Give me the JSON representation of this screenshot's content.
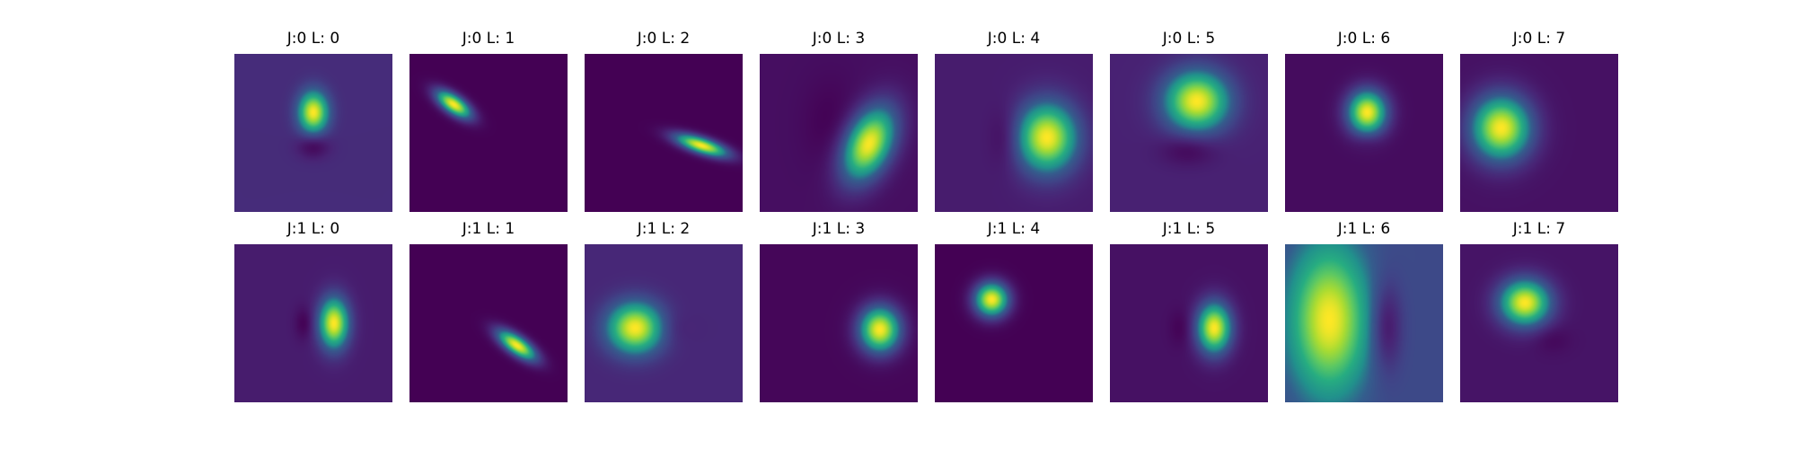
{
  "chart_data": {
    "type": "heatmap",
    "colormap": "viridis",
    "rows": 2,
    "cols": 8,
    "panels": [
      {
        "title": "J:0 L: 0",
        "background": 0.16,
        "blobs": [
          {
            "cx": 0.5,
            "cy": 0.37,
            "sx": 0.065,
            "sy": 0.09,
            "rot": 0,
            "amp": 0.84
          },
          {
            "cx": 0.5,
            "cy": 0.58,
            "sx": 0.07,
            "sy": 0.055,
            "rot": 0,
            "amp": -0.16
          }
        ]
      },
      {
        "title": "J:0 L: 1",
        "background": 0.0,
        "blobs": [
          {
            "cx": 0.28,
            "cy": 0.32,
            "sx": 0.09,
            "sy": 0.04,
            "rot": 35,
            "amp": 1.0
          }
        ]
      },
      {
        "title": "J:0 L: 2",
        "background": 0.0,
        "blobs": [
          {
            "cx": 0.74,
            "cy": 0.58,
            "sx": 0.12,
            "sy": 0.035,
            "rot": 18,
            "amp": 1.0
          }
        ]
      },
      {
        "title": "J:0 L: 3",
        "background": 0.05,
        "blobs": [
          {
            "cx": 0.69,
            "cy": 0.57,
            "sx": 0.1,
            "sy": 0.17,
            "rot": 25,
            "amp": 0.95
          },
          {
            "cx": 0.45,
            "cy": 0.45,
            "sx": 0.12,
            "sy": 0.2,
            "rot": 0,
            "amp": -0.05
          }
        ]
      },
      {
        "title": "J:0 L: 4",
        "background": 0.1,
        "blobs": [
          {
            "cx": 0.71,
            "cy": 0.53,
            "sx": 0.13,
            "sy": 0.15,
            "rot": 0,
            "amp": 0.9
          },
          {
            "cx": 0.45,
            "cy": 0.53,
            "sx": 0.07,
            "sy": 0.13,
            "rot": 0,
            "amp": -0.1
          }
        ]
      },
      {
        "title": "J:0 L: 5",
        "background": 0.12,
        "blobs": [
          {
            "cx": 0.55,
            "cy": 0.3,
            "sx": 0.14,
            "sy": 0.13,
            "rot": 0,
            "amp": 0.88
          },
          {
            "cx": 0.5,
            "cy": 0.6,
            "sx": 0.12,
            "sy": 0.07,
            "rot": 0,
            "amp": -0.12
          }
        ]
      },
      {
        "title": "J:0 L: 6",
        "background": 0.04,
        "blobs": [
          {
            "cx": 0.52,
            "cy": 0.37,
            "sx": 0.085,
            "sy": 0.095,
            "rot": 0,
            "amp": 0.96
          },
          {
            "cx": 0.52,
            "cy": 0.55,
            "sx": 0.06,
            "sy": 0.04,
            "rot": 0,
            "amp": -0.04
          }
        ]
      },
      {
        "title": "J:0 L: 7",
        "background": 0.06,
        "blobs": [
          {
            "cx": 0.26,
            "cy": 0.47,
            "sx": 0.13,
            "sy": 0.14,
            "rot": 0,
            "amp": 0.94
          }
        ]
      },
      {
        "title": "J:1 L: 0",
        "background": 0.1,
        "blobs": [
          {
            "cx": 0.63,
            "cy": 0.5,
            "sx": 0.065,
            "sy": 0.11,
            "rot": 0,
            "amp": 0.9
          },
          {
            "cx": 0.44,
            "cy": 0.5,
            "sx": 0.04,
            "sy": 0.07,
            "rot": 0,
            "amp": -0.1
          }
        ]
      },
      {
        "title": "J:1 L: 1",
        "background": 0.0,
        "blobs": [
          {
            "cx": 0.68,
            "cy": 0.64,
            "sx": 0.1,
            "sy": 0.04,
            "rot": 35,
            "amp": 1.0
          }
        ]
      },
      {
        "title": "J:1 L: 2",
        "background": 0.14,
        "blobs": [
          {
            "cx": 0.32,
            "cy": 0.53,
            "sx": 0.12,
            "sy": 0.11,
            "rot": 0,
            "amp": 0.86
          },
          {
            "cx": 0.55,
            "cy": 0.53,
            "sx": 0.08,
            "sy": 0.07,
            "rot": 0,
            "amp": -0.05
          }
        ]
      },
      {
        "title": "J:1 L: 3",
        "background": 0.02,
        "blobs": [
          {
            "cx": 0.76,
            "cy": 0.54,
            "sx": 0.09,
            "sy": 0.1,
            "rot": 0,
            "amp": 0.98
          }
        ]
      },
      {
        "title": "J:1 L: 4",
        "background": 0.0,
        "blobs": [
          {
            "cx": 0.36,
            "cy": 0.35,
            "sx": 0.075,
            "sy": 0.075,
            "rot": 0,
            "amp": 1.0
          }
        ]
      },
      {
        "title": "J:1 L: 5",
        "background": 0.06,
        "blobs": [
          {
            "cx": 0.66,
            "cy": 0.53,
            "sx": 0.075,
            "sy": 0.11,
            "rot": 0,
            "amp": 0.94
          },
          {
            "cx": 0.45,
            "cy": 0.53,
            "sx": 0.05,
            "sy": 0.08,
            "rot": 0,
            "amp": -0.06
          }
        ]
      },
      {
        "title": "J:1 L: 6",
        "background": 0.28,
        "blobs": [
          {
            "cx": 0.28,
            "cy": 0.48,
            "sx": 0.17,
            "sy": 0.32,
            "rot": 0,
            "amp": 0.72
          },
          {
            "cx": 0.64,
            "cy": 0.52,
            "sx": 0.07,
            "sy": 0.2,
            "rot": 0,
            "amp": -0.24
          }
        ]
      },
      {
        "title": "J:1 L: 7",
        "background": 0.07,
        "blobs": [
          {
            "cx": 0.41,
            "cy": 0.37,
            "sx": 0.11,
            "sy": 0.1,
            "rot": 0,
            "amp": 0.93
          },
          {
            "cx": 0.58,
            "cy": 0.6,
            "sx": 0.08,
            "sy": 0.06,
            "rot": 0,
            "amp": -0.05
          }
        ]
      }
    ]
  }
}
